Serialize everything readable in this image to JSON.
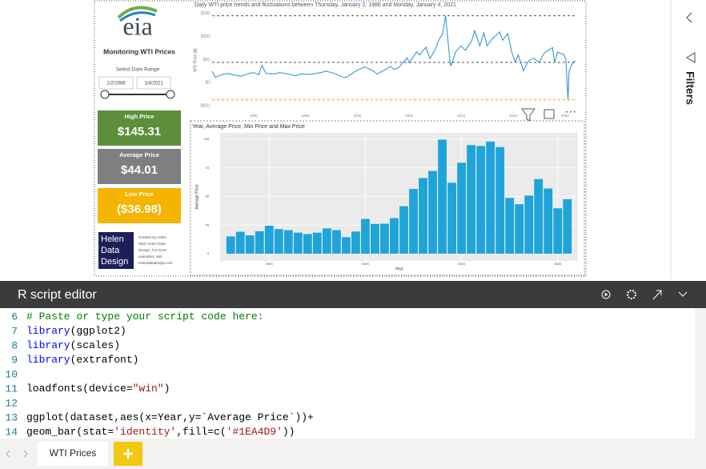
{
  "report": {
    "logo": "eia",
    "title": "Monitoring WTI Prices",
    "date_range": {
      "label": "Select Date Range",
      "start": "1/2/1986",
      "end": "1/4/2021"
    },
    "cards": [
      {
        "label": "High Price",
        "value": {
          "value": 145.31,
          "label": "$145.31"
        },
        "color": "#5b8f3b"
      },
      {
        "label": "Average Price",
        "value": {
          "value": 44.01,
          "label": "$44.01"
        },
        "color": "#7f7f7f"
      },
      {
        "label": "Low Price",
        "value": {
          "value": -36.98,
          "label": "($36.98)"
        },
        "color": "#f5b400"
      }
    ],
    "credit": {
      "brand": [
        "Helen",
        "Data",
        "Design"
      ],
      "text": [
        "Created by Helen",
        "Wall, Helen Data",
        "Design. For more",
        "examples, visit",
        "helendatadesign.com"
      ]
    }
  },
  "chart_data": [
    {
      "type": "line",
      "title": "Daily WTI price trends and fluctuations between Thursday, January 2, 1986 and Monday, January 4, 2021",
      "ylabel": "WTI Price ($)",
      "x": [
        1986.0,
        1986.3,
        1986.6,
        1987.0,
        1987.5,
        1988.0,
        1988.8,
        1989.5,
        1990.0,
        1990.5,
        1990.8,
        1991.2,
        1992.0,
        1992.5,
        1993.5,
        1994.0,
        1994.6,
        1995.5,
        1996.5,
        1997.0,
        1997.8,
        1998.5,
        1998.9,
        1999.5,
        2000.0,
        2000.7,
        2001.5,
        2001.9,
        2002.5,
        2003.2,
        2003.5,
        2004.0,
        2004.8,
        2005.0,
        2005.7,
        2006.0,
        2006.6,
        2007.0,
        2007.5,
        2007.9,
        2008.2,
        2008.5,
        2008.9,
        2009.0,
        2009.5,
        2010.0,
        2010.4,
        2011.0,
        2011.3,
        2011.8,
        2012.2,
        2012.5,
        2013.0,
        2013.7,
        2014.0,
        2014.5,
        2014.9,
        2015.2,
        2015.5,
        2016.0,
        2016.5,
        2017.0,
        2017.5,
        2018.0,
        2018.8,
        2019.0,
        2019.3,
        2019.9,
        2020.1,
        2020.3,
        2020.4,
        2020.7,
        2021.0
      ],
      "values": [
        25,
        12,
        14,
        18,
        20,
        17,
        14,
        20,
        22,
        17,
        38,
        20,
        19,
        22,
        18,
        15,
        19,
        18,
        22,
        25,
        20,
        13,
        11,
        20,
        27,
        34,
        26,
        19,
        26,
        35,
        29,
        33,
        54,
        43,
        67,
        60,
        77,
        52,
        72,
        95,
        105,
        145,
        50,
        36,
        68,
        80,
        70,
        90,
        113,
        80,
        108,
        80,
        95,
        110,
        92,
        106,
        65,
        45,
        60,
        26,
        48,
        53,
        44,
        64,
        76,
        45,
        66,
        61,
        50,
        -37,
        25,
        41,
        48
      ],
      "color": "#1f8fd0",
      "xlim": [
        1986,
        2021.1
      ],
      "ylim": [
        -55,
        155
      ],
      "xticks": [
        1990,
        1995,
        2000,
        2005,
        2010,
        2015,
        2020
      ],
      "yticks": [
        {
          "value": 150,
          "label": "$150"
        },
        {
          "value": 100,
          "label": "$100"
        },
        {
          "value": 50,
          "label": "$50"
        },
        {
          "value": 0,
          "label": "$0"
        },
        {
          "value": -50,
          "label": "($50)"
        }
      ]
    },
    {
      "type": "bar",
      "title": "Year, Average Price, Min Price and Max Price",
      "xlabel": "Year",
      "ylabel": "Average Price",
      "x": [
        1986,
        1987,
        1988,
        1989,
        1990,
        1991,
        1992,
        1993,
        1994,
        1995,
        1996,
        1997,
        1998,
        1999,
        2000,
        2001,
        2002,
        2003,
        2004,
        2005,
        2006,
        2007,
        2008,
        2009,
        2010,
        2011,
        2012,
        2013,
        2014,
        2015,
        2016,
        2017,
        2018,
        2019,
        2020,
        2021
      ],
      "values": [
        15.1,
        19.2,
        16.0,
        19.6,
        24.5,
        21.5,
        20.6,
        18.4,
        17.2,
        18.4,
        22.1,
        20.6,
        14.4,
        19.4,
        30.4,
        26.0,
        26.2,
        31.1,
        41.5,
        56.6,
        66.1,
        72.3,
        99.7,
        62.0,
        79.5,
        94.9,
        94.1,
        98.0,
        93.2,
        48.7,
        43.3,
        50.8,
        65.2,
        57.0,
        39.7,
        47.6
      ],
      "color": "#1EA4D9",
      "background": "#ebebeb",
      "grid": true,
      "xlim": [
        1984.9,
        2022.1
      ],
      "ylim": [
        -6.3,
        105.6
      ],
      "xticks": [
        1990,
        2000,
        2010,
        2020
      ],
      "yticks": [
        0,
        25,
        50,
        75,
        100
      ]
    }
  ],
  "editor": {
    "title": "R script editor",
    "lines": [
      {
        "number": 6,
        "code": "# Paste or type your script code here:"
      },
      {
        "number": 7,
        "code": "library(ggplot2)"
      },
      {
        "number": 8,
        "code": "library(scales)"
      },
      {
        "number": 9,
        "code": "library(extrafont)"
      },
      {
        "number": 10
      },
      {
        "number": 11,
        "code": "loadfonts(device=\"win\")"
      },
      {
        "number": 12
      },
      {
        "number": 13,
        "code": "ggplot(dataset,aes(x=Year,y=`Average Price`))+"
      },
      {
        "number": 14,
        "code": "geom_bar(stat='identity',fill=c('#1EA4D9'))"
      }
    ]
  },
  "sidebar": {
    "title": "Filters"
  },
  "tabs": {
    "items": [
      "WTI Prices"
    ]
  }
}
